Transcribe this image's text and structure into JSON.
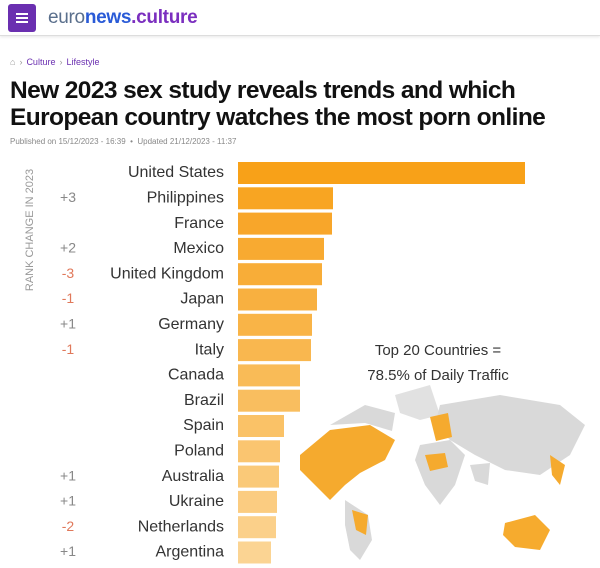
{
  "header": {
    "logo_parts": [
      "euro",
      "news",
      ".culture"
    ]
  },
  "breadcrumb": [
    "Culture",
    "Lifestyle"
  ],
  "article": {
    "title": "New 2023 sex study reveals trends and which European country watches the most porn online",
    "published": "Published on 15/12/2023 - 16:39",
    "updated": "Updated 21/12/2023 - 11:37"
  },
  "chart_data": {
    "type": "bar",
    "orientation": "horizontal",
    "y_axis_label": "RANK CHANGE IN 2023",
    "annotation": [
      "Top 20 Countries =",
      "78.5% of Daily Traffic"
    ],
    "categories": [
      "United States",
      "Philippines",
      "France",
      "Mexico",
      "United Kingdom",
      "Japan",
      "Germany",
      "Italy",
      "Canada",
      "Brazil",
      "Spain",
      "Poland",
      "Australia",
      "Ukraine",
      "Netherlands",
      "Argentina"
    ],
    "rank_change": [
      null,
      "+3",
      null,
      "+2",
      "-3",
      "-1",
      "+1",
      "-1",
      null,
      null,
      null,
      null,
      "+1",
      "+1",
      "-2",
      "+1"
    ],
    "values": [
      287,
      95,
      94,
      86,
      84,
      79,
      74,
      73,
      62,
      62,
      46,
      42,
      41,
      39,
      38,
      33
    ],
    "colors": [
      "#f8a118",
      "#f8a522",
      "#f8a62a",
      "#f8aa31",
      "#f8ad38",
      "#f8b040",
      "#f9b447",
      "#f9b74f",
      "#f9bb57",
      "#f9be5f",
      "#fac267",
      "#fac570",
      "#fac978",
      "#fbcc81",
      "#fbd08a",
      "#fbd493"
    ]
  }
}
